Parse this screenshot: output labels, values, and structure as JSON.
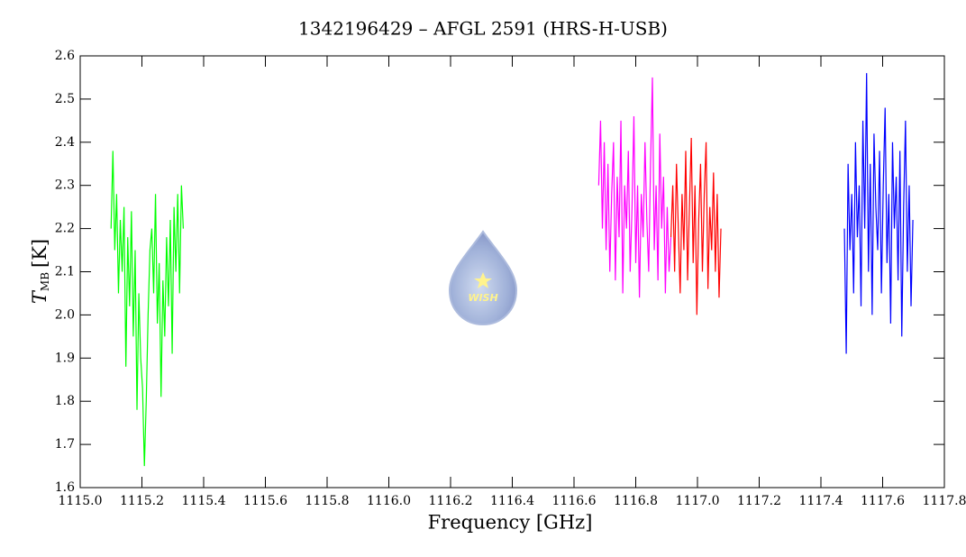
{
  "chart_data": {
    "type": "line",
    "title": "1342196429 – AFGL 2591 (HRS-H-USB)",
    "x_label": "Frequency [GHz]",
    "y_label": "T",
    "y_label_sub": "MB",
    "y_label_unit": "[K]",
    "logo_text": "WISH",
    "xlim": [
      1115.0,
      1117.8
    ],
    "xticks": [
      {
        "value": 1115,
        "label": "1115.0"
      },
      {
        "value": 1115.2,
        "label": "1115.2"
      },
      {
        "value": 1115.4,
        "label": "1115.4"
      },
      {
        "value": 1115.6,
        "label": "1115.6"
      },
      {
        "value": 1115.8,
        "label": "1115.8"
      },
      {
        "value": 1116,
        "label": "1116.0"
      },
      {
        "value": 1116.2,
        "label": "1116.2"
      },
      {
        "value": 1116.4,
        "label": "1116.4"
      },
      {
        "value": 1116.6,
        "label": "1116.6"
      },
      {
        "value": 1116.8,
        "label": "1116.8"
      },
      {
        "value": 1117,
        "label": "1117.0"
      },
      {
        "value": 1117.2,
        "label": "1117.2"
      },
      {
        "value": 1117.4,
        "label": "1117.4"
      },
      {
        "value": 1117.6,
        "label": "1117.6"
      },
      {
        "value": 1117.8,
        "label": "1117.8"
      }
    ],
    "ylim": [
      1.6,
      2.6
    ],
    "yticks": [
      1.6,
      1.7,
      1.8,
      1.9,
      {
        "value": 2,
        "label": "2.0"
      },
      2.1,
      2.2,
      2.3,
      2.4,
      2.5,
      2.6
    ],
    "series": [
      {
        "color": "#00ff00",
        "x": [
          1115.1,
          1115.106,
          1115.112,
          1115.118,
          1115.124,
          1115.13,
          1115.136,
          1115.142,
          1115.148,
          1115.154,
          1115.16,
          1115.166,
          1115.172,
          1115.178,
          1115.184,
          1115.19,
          1115.196,
          1115.202,
          1115.208,
          1115.214,
          1115.22,
          1115.226,
          1115.232,
          1115.238,
          1115.244,
          1115.25,
          1115.256,
          1115.262,
          1115.268,
          1115.274,
          1115.28,
          1115.286,
          1115.292,
          1115.298,
          1115.304,
          1115.31,
          1115.316,
          1115.322,
          1115.328,
          1115.334
        ],
        "values": [
          2.2,
          2.38,
          2.15,
          2.28,
          2.05,
          2.22,
          2.1,
          2.25,
          1.88,
          2.18,
          2.02,
          2.24,
          1.95,
          2.15,
          1.78,
          2.05,
          1.9,
          1.83,
          1.65,
          1.8,
          2.0,
          2.15,
          2.2,
          2.05,
          2.28,
          1.98,
          2.12,
          1.81,
          2.08,
          1.95,
          2.18,
          2.02,
          2.22,
          1.91,
          2.25,
          2.1,
          2.28,
          2.05,
          2.3,
          2.2
        ]
      },
      {
        "color": "#ff00ff",
        "x": [
          1116.68,
          1116.686,
          1116.692,
          1116.698,
          1116.704,
          1116.71,
          1116.716,
          1116.722,
          1116.728,
          1116.734,
          1116.74,
          1116.746,
          1116.752,
          1116.758,
          1116.764,
          1116.77,
          1116.776,
          1116.782,
          1116.788,
          1116.794,
          1116.8,
          1116.806,
          1116.812,
          1116.818,
          1116.824,
          1116.83,
          1116.836,
          1116.842,
          1116.848,
          1116.854,
          1116.86,
          1116.866,
          1116.872,
          1116.878,
          1116.884,
          1116.89,
          1116.896,
          1116.902,
          1116.908,
          1116.914
        ],
        "values": [
          2.3,
          2.45,
          2.2,
          2.4,
          2.15,
          2.35,
          2.1,
          2.28,
          2.4,
          2.08,
          2.32,
          2.18,
          2.45,
          2.05,
          2.3,
          2.2,
          2.38,
          2.1,
          2.25,
          2.46,
          2.12,
          2.3,
          2.04,
          2.28,
          2.18,
          2.4,
          2.22,
          2.1,
          2.35,
          2.55,
          2.15,
          2.3,
          2.08,
          2.42,
          2.2,
          2.32,
          2.05,
          2.25,
          2.1,
          2.18
        ]
      },
      {
        "color": "#ff0000",
        "x": [
          1116.914,
          1116.92,
          1116.926,
          1116.932,
          1116.938,
          1116.944,
          1116.95,
          1116.956,
          1116.962,
          1116.968,
          1116.974,
          1116.98,
          1116.986,
          1116.992,
          1116.998,
          1117.004,
          1117.01,
          1117.016,
          1117.022,
          1117.028,
          1117.034,
          1117.04,
          1117.046,
          1117.052,
          1117.058,
          1117.064,
          1117.07,
          1117.076
        ],
        "values": [
          2.18,
          2.3,
          2.1,
          2.35,
          2.2,
          2.05,
          2.28,
          2.15,
          2.38,
          2.08,
          2.25,
          2.41,
          2.12,
          2.3,
          2.0,
          2.22,
          2.35,
          2.1,
          2.28,
          2.4,
          2.06,
          2.25,
          2.15,
          2.33,
          2.1,
          2.28,
          2.04,
          2.2
        ]
      },
      {
        "color": "#0000ff",
        "x": [
          1117.476,
          1117.482,
          1117.488,
          1117.494,
          1117.5,
          1117.506,
          1117.512,
          1117.518,
          1117.524,
          1117.53,
          1117.536,
          1117.542,
          1117.548,
          1117.554,
          1117.56,
          1117.566,
          1117.572,
          1117.578,
          1117.584,
          1117.59,
          1117.596,
          1117.602,
          1117.608,
          1117.614,
          1117.62,
          1117.626,
          1117.632,
          1117.638,
          1117.644,
          1117.65,
          1117.656,
          1117.662,
          1117.668,
          1117.674,
          1117.68,
          1117.686,
          1117.692,
          1117.698
        ],
        "values": [
          2.2,
          1.91,
          2.35,
          2.15,
          2.28,
          2.05,
          2.4,
          2.18,
          2.3,
          2.02,
          2.45,
          2.2,
          2.56,
          2.1,
          2.35,
          2.0,
          2.42,
          2.25,
          2.15,
          2.38,
          2.05,
          2.3,
          2.48,
          2.12,
          2.28,
          1.98,
          2.4,
          2.2,
          2.32,
          2.08,
          2.38,
          1.95,
          2.25,
          2.45,
          2.1,
          2.3,
          2.02,
          2.22
        ]
      }
    ]
  }
}
